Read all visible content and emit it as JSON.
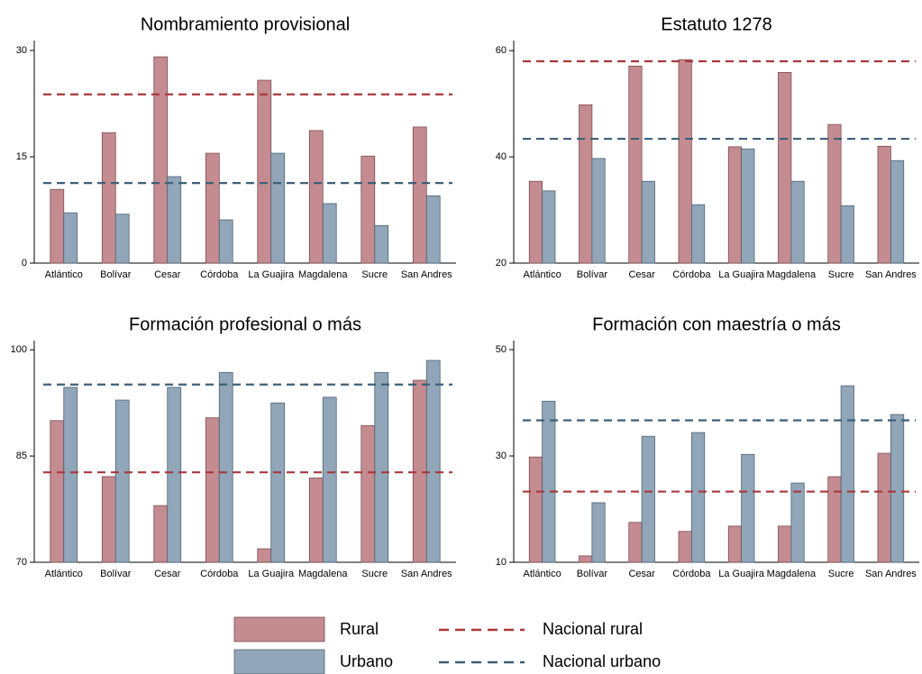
{
  "chart_data": [
    {
      "type": "bar",
      "title": "Nombramiento provisional",
      "categories": [
        "Atlántico",
        "Bolívar",
        "Cesar",
        "Córdoba",
        "La Guajira",
        "Magdalena",
        "Sucre",
        "San Andres"
      ],
      "series": [
        {
          "name": "Rural",
          "color": "#c48c91",
          "values": [
            10.4,
            18.4,
            29.1,
            15.5,
            25.8,
            18.7,
            15.1,
            19.2
          ]
        },
        {
          "name": "Urbano",
          "color": "#91a6b8",
          "values": [
            7.1,
            6.9,
            12.2,
            6.1,
            15.5,
            8.4,
            5.3,
            9.5
          ]
        }
      ],
      "reference_lines": [
        {
          "name": "Nacional rural",
          "color": "#a8383b",
          "value": 23.8
        },
        {
          "name": "Nacional urbano",
          "color": "#3e5f78",
          "value": 11.3
        }
      ],
      "ylim": [
        0,
        31.4
      ],
      "yticks": [
        0,
        15,
        30
      ]
    },
    {
      "type": "bar",
      "title": "Estatuto 1278",
      "categories": [
        "Atlántico",
        "Bolívar",
        "Cesar",
        "Córdoba",
        "La Guajira",
        "Magdalena",
        "Sucre",
        "San Andres"
      ],
      "series": [
        {
          "name": "Rural",
          "color": "#c48c91",
          "values": [
            35.4,
            49.8,
            57.1,
            58.3,
            41.9,
            55.9,
            46.1,
            42.0
          ]
        },
        {
          "name": "Urbano",
          "color": "#91a6b8",
          "values": [
            33.6,
            39.7,
            35.4,
            31.0,
            41.5,
            35.4,
            30.8,
            39.3
          ]
        }
      ],
      "reference_lines": [
        {
          "name": "Nacional rural",
          "color": "#a8383b",
          "value": 58.0
        },
        {
          "name": "Nacional urbano",
          "color": "#3e5f78",
          "value": 43.4
        }
      ],
      "ylim": [
        20,
        61.9
      ],
      "yticks": [
        20,
        40,
        60
      ]
    },
    {
      "type": "bar",
      "title": "Formación profesional o más",
      "categories": [
        "Atlántico",
        "Bolívar",
        "Cesar",
        "Córdoba",
        "La Guajira",
        "Magdalena",
        "Sucre",
        "San Andres"
      ],
      "series": [
        {
          "name": "Rural",
          "color": "#c48c91",
          "values": [
            90.0,
            82.1,
            78.0,
            90.4,
            71.9,
            81.9,
            89.3,
            95.7
          ]
        },
        {
          "name": "Urbano",
          "color": "#91a6b8",
          "values": [
            94.7,
            92.9,
            94.7,
            96.8,
            92.5,
            93.3,
            96.8,
            98.5
          ]
        }
      ],
      "reference_lines": [
        {
          "name": "Nacional rural",
          "color": "#a8383b",
          "value": 82.7
        },
        {
          "name": "Nacional urbano",
          "color": "#3e5f78",
          "value": 95.1
        }
      ],
      "ylim": [
        70,
        101.3
      ],
      "yticks": [
        70,
        85,
        100
      ]
    },
    {
      "type": "bar",
      "title": "Formación con maestría o más",
      "categories": [
        "Atlántico",
        "Bolívar",
        "Cesar",
        "Córdoba",
        "La Guajira",
        "Magdalena",
        "Sucre",
        "San Andres"
      ],
      "series": [
        {
          "name": "Rural",
          "color": "#c48c91",
          "values": [
            29.8,
            11.2,
            17.5,
            15.8,
            16.8,
            16.8,
            26.1,
            30.5
          ]
        },
        {
          "name": "Urbano",
          "color": "#91a6b8",
          "values": [
            40.3,
            21.2,
            33.7,
            34.4,
            30.3,
            24.9,
            43.2,
            37.8
          ]
        }
      ],
      "reference_lines": [
        {
          "name": "Nacional rural",
          "color": "#a8383b",
          "value": 23.3
        },
        {
          "name": "Nacional urbano",
          "color": "#3e5f78",
          "value": 36.7
        }
      ],
      "ylim": [
        10,
        51.7
      ],
      "yticks": [
        10,
        30,
        50
      ]
    }
  ]
}
